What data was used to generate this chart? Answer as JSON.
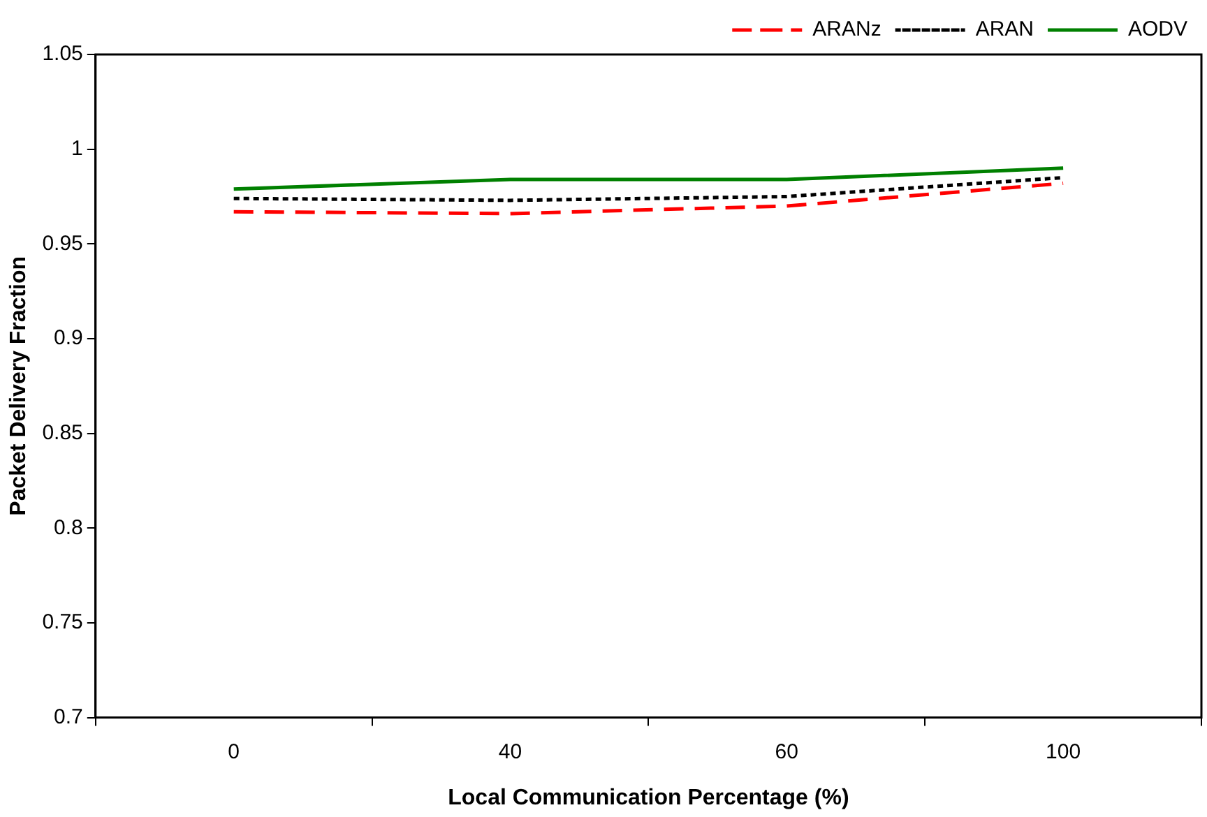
{
  "chart_data": {
    "type": "line",
    "xlabel": "Local Communication Percentage (%)",
    "ylabel": "Packet Delivery Fraction",
    "categories": [
      "0",
      "40",
      "60",
      "100"
    ],
    "series": [
      {
        "name": "ARANz",
        "color": "#ff0000",
        "line_style": "dashed",
        "values": [
          0.967,
          0.966,
          0.97,
          0.982
        ]
      },
      {
        "name": "ARAN",
        "color": "#000000",
        "line_style": "dotted",
        "values": [
          0.974,
          0.973,
          0.975,
          0.985
        ]
      },
      {
        "name": "AODV",
        "color": "#008000",
        "line_style": "solid",
        "values": [
          0.979,
          0.984,
          0.984,
          0.99
        ]
      }
    ],
    "ylim": [
      0.7,
      1.05
    ],
    "yticks": [
      0.7,
      0.75,
      0.8,
      0.85,
      0.9,
      0.95,
      1,
      1.05
    ],
    "grid": false,
    "legend": "top right",
    "marker": "none"
  }
}
